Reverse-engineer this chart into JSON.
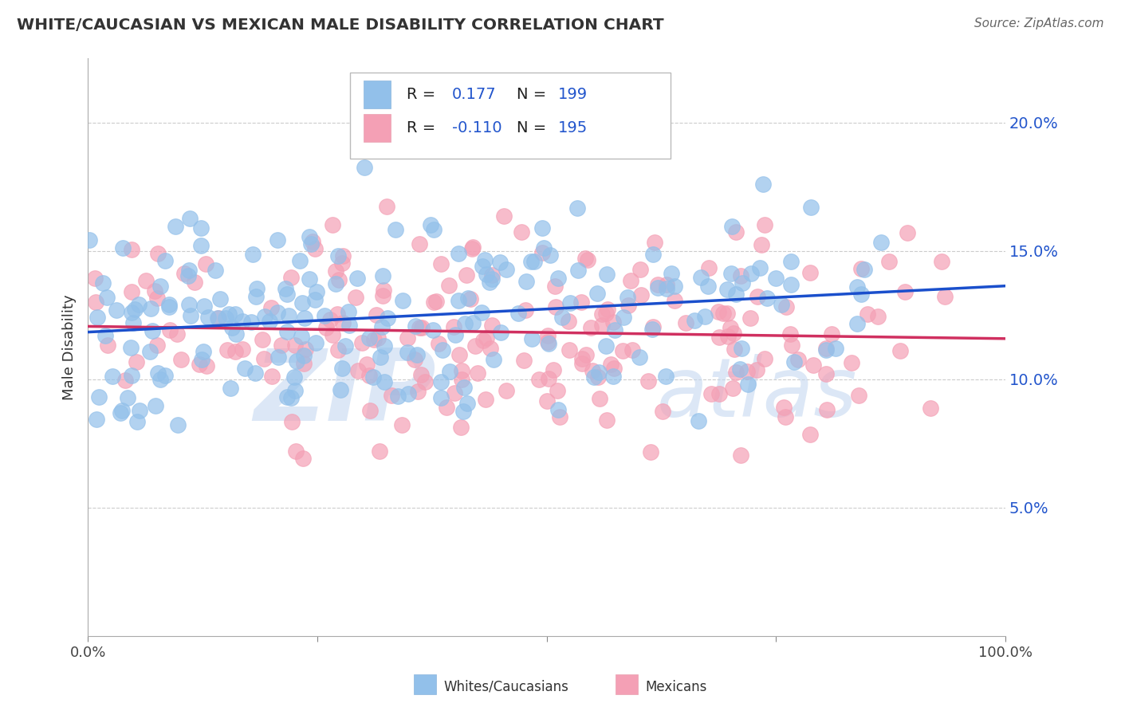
{
  "title": "WHITE/CAUCASIAN VS MEXICAN MALE DISABILITY CORRELATION CHART",
  "source": "Source: ZipAtlas.com",
  "ylabel": "Male Disability",
  "r_white": 0.177,
  "n_white": 199,
  "r_mexican": -0.11,
  "n_mexican": 195,
  "white_color": "#92C0EA",
  "pink_color": "#F4A0B5",
  "blue_line_color": "#1A4FCC",
  "pink_line_color": "#D03060",
  "legend_r_color": "#222222",
  "legend_n_color": "#2255CC",
  "watermark_color": "#C5D8F0",
  "background_color": "#FFFFFF",
  "grid_color": "#CCCCCC",
  "title_color": "#333333",
  "xmin": 0.0,
  "xmax": 1.0,
  "ymin": 0.0,
  "ymax": 0.225,
  "yticks": [
    0.05,
    0.1,
    0.15,
    0.2
  ],
  "ytick_labels": [
    "5.0%",
    "10.0%",
    "15.0%",
    "20.0%"
  ]
}
